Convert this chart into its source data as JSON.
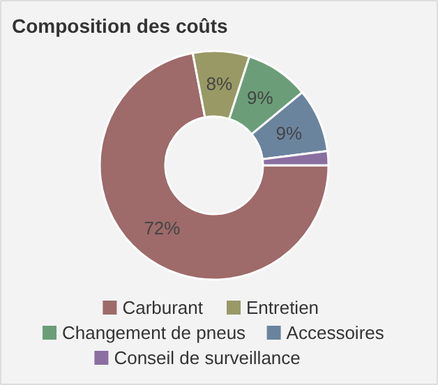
{
  "chart_data": {
    "type": "donut",
    "title": "Composition des coûts",
    "categories": [
      "Carburant",
      "Entretien",
      "Changement de pneus",
      "Accessoires",
      "Conseil de surveillance"
    ],
    "values": [
      72,
      8,
      9,
      9,
      2
    ],
    "colors": [
      "#9e6a6a",
      "#999966",
      "#6b9e78",
      "#6b849e",
      "#8a6fa0"
    ],
    "value_labels": [
      "72%",
      "8%",
      "9%",
      "9%",
      null
    ],
    "legend": "bottom"
  }
}
